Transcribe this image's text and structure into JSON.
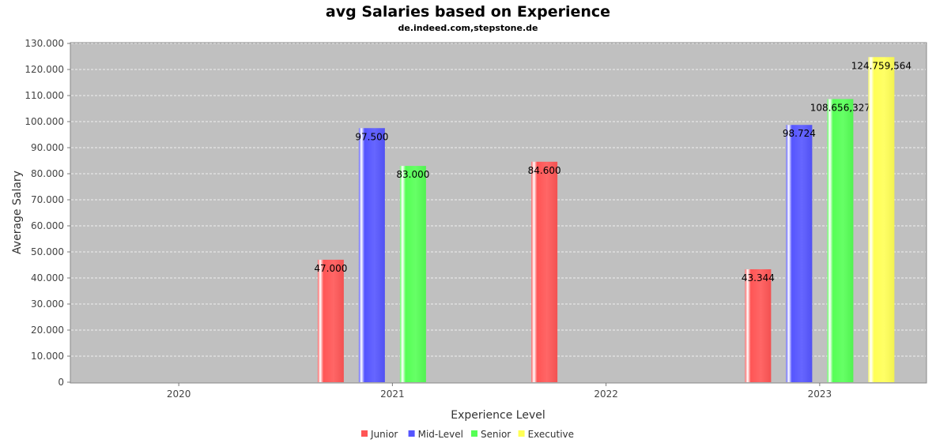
{
  "chart_data": {
    "type": "bar",
    "title": "avg Salaries based on Experience",
    "subtitle": "de.indeed.com,stepstone.de",
    "xlabel": "Experience Level",
    "ylabel": "Average Salary",
    "ylim": [
      0,
      130000
    ],
    "yticks": [
      0,
      10000,
      20000,
      30000,
      40000,
      50000,
      60000,
      70000,
      80000,
      90000,
      100000,
      110000,
      120000,
      130000
    ],
    "ytick_labels": [
      "0",
      "10.000",
      "20.000",
      "30.000",
      "40.000",
      "50.000",
      "60.000",
      "70.000",
      "80.000",
      "90.000",
      "100.000",
      "110.000",
      "120.000",
      "130.000"
    ],
    "categories": [
      "2020",
      "2021",
      "2022",
      "2023"
    ],
    "grid": true,
    "legend_position": "bottom-center",
    "series": [
      {
        "name": "Junior",
        "color": "#ff5555",
        "values": [
          null,
          47000,
          84600,
          43344
        ],
        "labels": [
          "",
          "47.000",
          "84.600",
          "43.344"
        ]
      },
      {
        "name": "Mid-Level",
        "color": "#5555ff",
        "values": [
          null,
          97500,
          null,
          98724
        ],
        "labels": [
          "",
          "97.500",
          "",
          "98.724"
        ]
      },
      {
        "name": "Senior",
        "color": "#55ff55",
        "values": [
          null,
          83000,
          null,
          108656.327
        ],
        "labels": [
          "",
          "83.000",
          "",
          "108.656,327"
        ]
      },
      {
        "name": "Executive",
        "color": "#ffff55",
        "values": [
          null,
          null,
          null,
          124759.564
        ],
        "labels": [
          "",
          "",
          "",
          "124.759,564"
        ]
      }
    ]
  }
}
